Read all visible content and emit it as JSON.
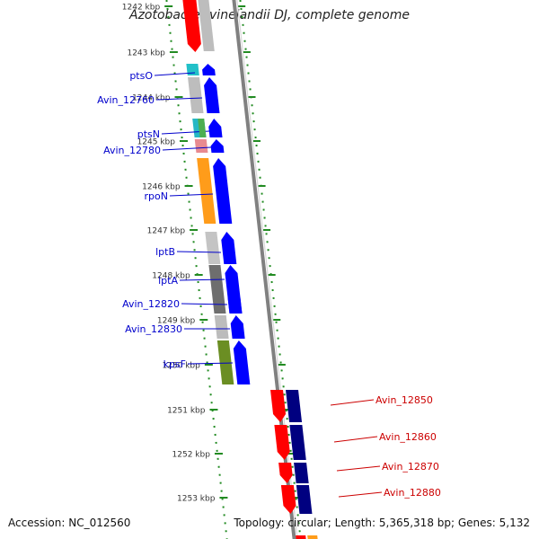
{
  "title": "Azotobacter vinelandii DJ, complete genome",
  "footer": {
    "accession": "Accession: NC_012560",
    "topology": "Topology: circular; Length: 5,365,318 bp; Genes: 5,132"
  },
  "colors": {
    "forward_gene": "#0000ff",
    "reverse_gene": "#ff0000",
    "reverse_dark": "#000080",
    "tick": "#228b22",
    "label_blue": "#0000cc",
    "label_red": "#cc0000",
    "backbone": "#808080"
  },
  "ticks": [
    {
      "label": "1242 kbp"
    },
    {
      "label": "1243 kbp"
    },
    {
      "label": "1244 kbp"
    },
    {
      "label": "1245 kbp"
    },
    {
      "label": "1246 kbp"
    },
    {
      "label": "1247 kbp"
    },
    {
      "label": "1248 kbp"
    },
    {
      "label": "1249 kbp"
    },
    {
      "label": "1250 kbp"
    },
    {
      "label": "1251 kbp"
    },
    {
      "label": "1252 kbp"
    },
    {
      "label": "1253 kbp"
    }
  ],
  "forward_genes": [
    {
      "name": "ptsO",
      "cog_color": "#22c0c8"
    },
    {
      "name": "Avin_12760",
      "cog_color": "#bdbdbd"
    },
    {
      "name": "ptsN",
      "cog_color": "#26b8c4"
    },
    {
      "name": "Avin_12780",
      "cog_color": "#e88a90"
    },
    {
      "name": "rpoN",
      "cog_color": "#ff9c1a"
    },
    {
      "name": "lptB",
      "cog_color": "#c4c4c4"
    },
    {
      "name": "lptA",
      "cog_color": "#6e6e6e"
    },
    {
      "name": "Avin_12820",
      "cog_color": "#7a7a7a"
    },
    {
      "name": "Avin_12830",
      "cog_color": "#bcbcbc"
    },
    {
      "name": "kpsF",
      "cog_color": "#6b8e23"
    }
  ],
  "reverse_genes": [
    {
      "name": "Avin_12850"
    },
    {
      "name": "Avin_12860"
    },
    {
      "name": "Avin_12870"
    },
    {
      "name": "Avin_12880"
    }
  ]
}
